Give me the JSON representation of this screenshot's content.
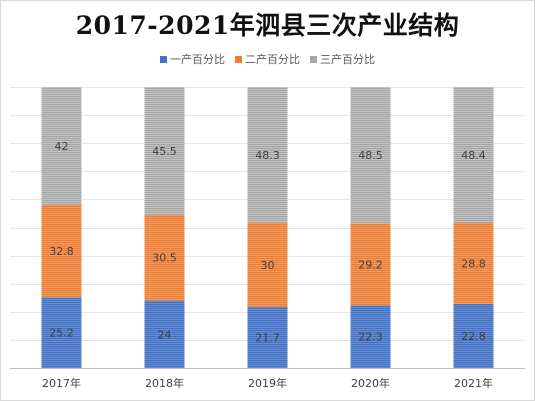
{
  "chart_data": {
    "type": "bar",
    "stacked": true,
    "title": "2017-2021年泗县三次产业结构",
    "categories": [
      "2017年",
      "2018年",
      "2019年",
      "2020年",
      "2021年"
    ],
    "series": [
      {
        "name": "一产百分比",
        "values": [
          25.2,
          24,
          21.7,
          22.3,
          22.8
        ],
        "color": "#4472c4"
      },
      {
        "name": "二产百分比",
        "values": [
          32.8,
          30.5,
          30,
          29.2,
          28.8
        ],
        "color": "#ed7d31"
      },
      {
        "name": "三产百分比",
        "values": [
          42,
          45.5,
          48.3,
          48.5,
          48.4
        ],
        "color": "#a5a5a5"
      }
    ],
    "ylim": [
      0,
      100
    ],
    "y_axis_labels_visible": false,
    "grid": true,
    "legend_position": "top"
  }
}
